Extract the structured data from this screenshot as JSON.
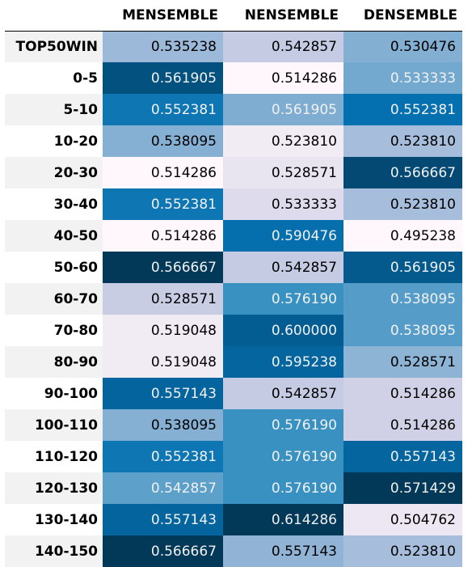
{
  "chart_data": {
    "type": "heatmap",
    "title": "",
    "columns": [
      "MENSEMBLE",
      "NENSEMBLE",
      "DENSEMBLE"
    ],
    "rows": [
      "TOP50WIN",
      "0-5",
      "5-10",
      "10-20",
      "20-30",
      "30-40",
      "40-50",
      "50-60",
      "60-70",
      "70-80",
      "80-90",
      "90-100",
      "100-110",
      "110-120",
      "120-130",
      "130-140",
      "140-150"
    ],
    "values": [
      [
        "0.535238",
        "0.542857",
        "0.530476"
      ],
      [
        "0.561905",
        "0.514286",
        "0.533333"
      ],
      [
        "0.552381",
        "0.561905",
        "0.552381"
      ],
      [
        "0.538095",
        "0.523810",
        "0.523810"
      ],
      [
        "0.514286",
        "0.528571",
        "0.566667"
      ],
      [
        "0.552381",
        "0.533333",
        "0.523810"
      ],
      [
        "0.514286",
        "0.590476",
        "0.495238"
      ],
      [
        "0.566667",
        "0.542857",
        "0.561905"
      ],
      [
        "0.528571",
        "0.576190",
        "0.538095"
      ],
      [
        "0.519048",
        "0.600000",
        "0.538095"
      ],
      [
        "0.519048",
        "0.595238",
        "0.528571"
      ],
      [
        "0.557143",
        "0.542857",
        "0.514286"
      ],
      [
        "0.538095",
        "0.576190",
        "0.514286"
      ],
      [
        "0.552381",
        "0.576190",
        "0.557143"
      ],
      [
        "0.542857",
        "0.576190",
        "0.571429"
      ],
      [
        "0.557143",
        "0.614286",
        "0.504762"
      ],
      [
        "0.566667",
        "0.557143",
        "0.523810"
      ]
    ],
    "colormap": "PuBu",
    "colorscale_per": "column"
  }
}
